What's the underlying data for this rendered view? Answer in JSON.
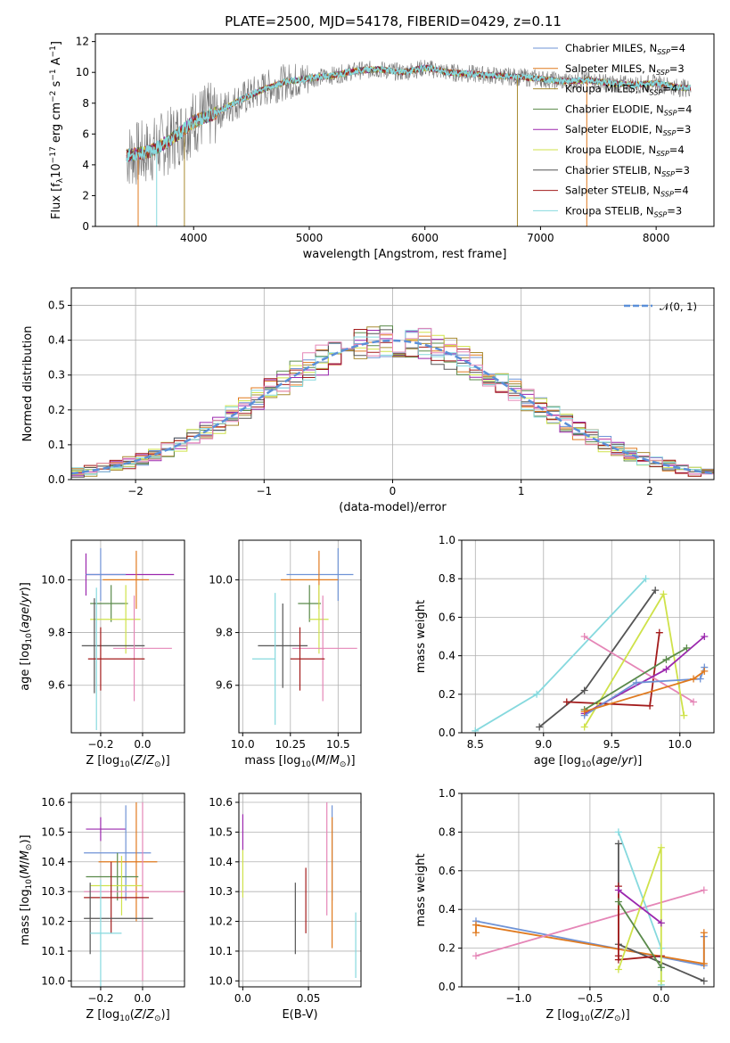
{
  "figure": {
    "title": "PLATE=2500, MJD=54178, FIBERID=0429, z=0.11"
  },
  "colors": {
    "chabrier_miles": "#6f93d6",
    "salpeter_miles": "#e07a1f",
    "kroupa_miles": "#a88b32",
    "chabrier_elodie": "#5a8a4a",
    "salpeter_elodie": "#9b27ae",
    "kroupa_elodie": "#cfe24a",
    "chabrier_stelib": "#555555",
    "salpeter_stelib": "#a31b1b",
    "kroupa_stelib": "#86d9de",
    "pink": "#e586b7",
    "normal": "#5b8fd8"
  },
  "chart_data": [
    {
      "id": "spectrum",
      "type": "line",
      "xlabel": "wavelength [Angstrom, rest frame]",
      "ylabel": "Flux [f_λ 10^-17 erg cm^-2 s^-1 A^-1]",
      "xlim": [
        3150,
        8500
      ],
      "ylim": [
        0,
        12.5
      ],
      "xticks": [
        4000,
        5000,
        6000,
        7000,
        8000
      ],
      "yticks": [
        0,
        2,
        4,
        6,
        8,
        10,
        12
      ],
      "legend": "top-right",
      "series_names": [
        "Chabrier MILES, N_SSP=4",
        "Salpeter MILES, N_SSP=3",
        "Kroupa MILES, N_SSP=4",
        "Chabrier ELODIE, N_SSP=4",
        "Salpeter ELODIE, N_SSP=3",
        "Kroupa ELODIE, N_SSP=4",
        "Chabrier STELIB, N_SSP=3",
        "Salpeter STELIB, N_SSP=4",
        "Kroupa STELIB, N_SSP=3"
      ],
      "x": [
        3420,
        3600,
        3800,
        4000,
        4200,
        4400,
        4600,
        4800,
        5000,
        5200,
        5400,
        5600,
        5800,
        6000,
        6200,
        6400,
        6600,
        6800,
        7000,
        7200,
        7400,
        7600,
        7800,
        8000,
        8200,
        8300
      ],
      "model_y": [
        4.6,
        4.8,
        5.6,
        6.8,
        7.4,
        8.2,
        8.9,
        9.4,
        9.6,
        9.8,
        10.1,
        10.2,
        10.0,
        10.3,
        10.0,
        9.9,
        9.8,
        9.7,
        9.6,
        9.4,
        9.5,
        9.3,
        9.2,
        9.3,
        9.0,
        9.0
      ]
    },
    {
      "id": "residual-histogram",
      "type": "histogram",
      "xlabel": "(data-model)/error",
      "ylabel": "Normed distribution",
      "xlim": [
        -2.5,
        2.5
      ],
      "ylim": [
        0,
        0.55
      ],
      "xticks": [
        -2,
        -1,
        0,
        1,
        2
      ],
      "yticks": [
        0.0,
        0.1,
        0.2,
        0.3,
        0.4,
        0.5
      ],
      "bin_width": 0.1,
      "bin_start": -2.5,
      "legend": "top-right",
      "legend_label": "𝒩(0, 1)",
      "series": [
        {
          "values": [
            0.02,
            0.02,
            0.03,
            0.03,
            0.04,
            0.04,
            0.05,
            0.05,
            0.06,
            0.07,
            0.08,
            0.1,
            0.11,
            0.12,
            0.13,
            0.15,
            0.16,
            0.19,
            0.21,
            0.23,
            0.25,
            0.28,
            0.3,
            0.31,
            0.33,
            0.35,
            0.36,
            0.37,
            0.38,
            0.4,
            0.39,
            0.39,
            0.4,
            0.41,
            0.42,
            0.4,
            0.39,
            0.38,
            0.37,
            0.36,
            0.35,
            0.33,
            0.31,
            0.3,
            0.28,
            0.26,
            0.24,
            0.22,
            0.2,
            0.18,
            0.16,
            0.14,
            0.13,
            0.11,
            0.1,
            0.09,
            0.07,
            0.06,
            0.05,
            0.05,
            0.04,
            0.04,
            0.03,
            0.03,
            0.02,
            0.02,
            0.02,
            0.02,
            0.01,
            0.01,
            0.01,
            0.01,
            0.01,
            0.01,
            0.01,
            0.01,
            0.01,
            0.01,
            0.01,
            0.01
          ]
        }
      ]
    },
    {
      "id": "age-vs-Z",
      "type": "errorbar",
      "xlabel": "Z [log10(Z/Z⊙)]",
      "ylabel": "age  [log10(age/yr)]",
      "xlim": [
        -0.34,
        0.2
      ],
      "ylim": [
        9.42,
        10.15
      ],
      "xticks": [
        -0.2,
        0.0
      ],
      "yticks": [
        9.6,
        9.8,
        10.0
      ],
      "points": [
        {
          "x": -0.27,
          "y": 10.02,
          "xerr": [
            0.0,
            0.42
          ],
          "yerr": 0.08,
          "c": "salpeter_elodie"
        },
        {
          "x": -0.2,
          "y": 10.02,
          "xerr": [
            0.07,
            0.12
          ],
          "yerr": 0.1,
          "c": "chabrier_miles"
        },
        {
          "x": -0.03,
          "y": 10.0,
          "xerr": [
            0.16,
            0.06
          ],
          "yerr": 0.11,
          "c": "salpeter_miles"
        },
        {
          "x": -0.15,
          "y": 9.91,
          "xerr": [
            0.1,
            0.08
          ],
          "yerr": 0.07,
          "c": "chabrier_elodie"
        },
        {
          "x": -0.08,
          "y": 9.85,
          "xerr": [
            0.17,
            0.07
          ],
          "yerr": 0.13,
          "c": "kroupa_elodie"
        },
        {
          "x": -0.23,
          "y": 9.75,
          "xerr": [
            0.06,
            0.24
          ],
          "yerr": 0.18,
          "c": "chabrier_stelib"
        },
        {
          "x": -0.04,
          "y": 9.74,
          "xerr": [
            0.1,
            0.18
          ],
          "yerr": 0.2,
          "c": "pink"
        },
        {
          "x": -0.2,
          "y": 9.7,
          "xerr": [
            0.06,
            0.21
          ],
          "yerr": 0.12,
          "c": "salpeter_stelib"
        },
        {
          "x": -0.22,
          "y": 9.7,
          "xerr": [
            0.0,
            0.0
          ],
          "yerr": 0.27,
          "c": "kroupa_stelib"
        }
      ]
    },
    {
      "id": "age-vs-mass",
      "type": "errorbar",
      "xlabel": "mass [log10(M/M⊙)]",
      "ylabel": "",
      "xlim": [
        9.98,
        10.62
      ],
      "ylim": [
        9.42,
        10.15
      ],
      "xticks": [
        10.0,
        10.25,
        10.5
      ],
      "yticks": [
        9.6,
        9.8,
        10.0
      ],
      "points": [
        {
          "x": 10.5,
          "y": 10.02,
          "xerr": [
            0.27,
            0.08
          ],
          "yerr": 0.1,
          "c": "chabrier_miles"
        },
        {
          "x": 10.4,
          "y": 10.0,
          "xerr": [
            0.2,
            0.1
          ],
          "yerr": 0.11,
          "c": "salpeter_miles"
        },
        {
          "x": 10.35,
          "y": 9.91,
          "xerr": [
            0.06,
            0.06
          ],
          "yerr": 0.07,
          "c": "chabrier_elodie"
        },
        {
          "x": 10.4,
          "y": 9.85,
          "xerr": [
            0.05,
            0.05
          ],
          "yerr": 0.13,
          "c": "kroupa_elodie"
        },
        {
          "x": 10.21,
          "y": 9.75,
          "xerr": [
            0.13,
            0.13
          ],
          "yerr": 0.16,
          "c": "chabrier_stelib"
        },
        {
          "x": 10.42,
          "y": 9.74,
          "xerr": [
            0.16,
            0.18
          ],
          "yerr": 0.2,
          "c": "pink"
        },
        {
          "x": 10.3,
          "y": 9.7,
          "xerr": [
            0.05,
            0.13
          ],
          "yerr": 0.12,
          "c": "salpeter_stelib"
        },
        {
          "x": 10.17,
          "y": 9.7,
          "xerr": [
            0.12,
            0.0
          ],
          "yerr": 0.25,
          "c": "kroupa_stelib"
        }
      ]
    },
    {
      "id": "massweight-vs-age",
      "type": "line",
      "xlabel": "age  [log10(age/yr)]",
      "ylabel": "mass weight",
      "xlim": [
        8.4,
        10.25
      ],
      "ylim": [
        0.0,
        1.0
      ],
      "xticks": [
        8.5,
        9.0,
        9.5,
        10.0
      ],
      "yticks": [
        0.0,
        0.2,
        0.4,
        0.6,
        0.8,
        1.0
      ],
      "series": [
        {
          "c": "kroupa_stelib",
          "x": [
            8.5,
            8.95,
            9.75
          ],
          "y": [
            0.01,
            0.2,
            0.8
          ]
        },
        {
          "c": "chabrier_stelib",
          "x": [
            8.97,
            9.3,
            9.82
          ],
          "y": [
            0.03,
            0.22,
            0.74
          ]
        },
        {
          "c": "salpeter_stelib",
          "x": [
            9.17,
            9.78,
            9.85
          ],
          "y": [
            0.16,
            0.14,
            0.52
          ]
        },
        {
          "c": "pink",
          "x": [
            9.3,
            10.1
          ],
          "y": [
            0.5,
            0.16
          ]
        },
        {
          "c": "kroupa_elodie",
          "x": [
            9.3,
            9.88,
            10.03
          ],
          "y": [
            0.03,
            0.72,
            0.09
          ]
        },
        {
          "c": "salpeter_elodie",
          "x": [
            9.3,
            9.9,
            10.18
          ],
          "y": [
            0.1,
            0.33,
            0.5
          ]
        },
        {
          "c": "chabrier_elodie",
          "x": [
            9.3,
            9.9,
            10.05
          ],
          "y": [
            0.12,
            0.38,
            0.44
          ]
        },
        {
          "c": "chabrier_miles",
          "x": [
            9.3,
            9.68,
            10.15,
            10.18
          ],
          "y": [
            0.09,
            0.26,
            0.28,
            0.34
          ]
        },
        {
          "c": "salpeter_miles",
          "x": [
            9.3,
            10.1,
            10.18
          ],
          "y": [
            0.11,
            0.28,
            0.32
          ]
        }
      ]
    },
    {
      "id": "mass-vs-Z",
      "type": "errorbar",
      "xlabel": "Z [log10(Z/Z⊙)]",
      "ylabel": "mass [log10(M/M⊙)]",
      "xlim": [
        -0.34,
        0.2
      ],
      "ylim": [
        9.98,
        10.63
      ],
      "xticks": [
        -0.2,
        0.0
      ],
      "yticks": [
        10.0,
        10.1,
        10.2,
        10.3,
        10.4,
        10.5,
        10.6
      ],
      "points": [
        {
          "x": -0.2,
          "y": 10.51,
          "xerr": [
            0.07,
            0.12
          ],
          "yerr": 0.04,
          "c": "salpeter_elodie"
        },
        {
          "x": -0.08,
          "y": 10.43,
          "xerr": [
            0.2,
            0.12
          ],
          "yerr": 0.16,
          "c": "chabrier_miles"
        },
        {
          "x": -0.03,
          "y": 10.4,
          "xerr": [
            0.18,
            0.1
          ],
          "yerr": 0.2,
          "c": "salpeter_miles"
        },
        {
          "x": -0.12,
          "y": 10.35,
          "xerr": [
            0.15,
            0.1
          ],
          "yerr": 0.08,
          "c": "chabrier_elodie"
        },
        {
          "x": -0.1,
          "y": 10.32,
          "xerr": [
            0.15,
            0.1
          ],
          "yerr": 0.1,
          "c": "kroupa_elodie"
        },
        {
          "x": 0.0,
          "y": 10.3,
          "xerr": [
            0.28,
            0.2
          ],
          "yerr": 0.3,
          "c": "pink"
        },
        {
          "x": -0.15,
          "y": 10.28,
          "xerr": [
            0.13,
            0.18
          ],
          "yerr": 0.12,
          "c": "salpeter_stelib"
        },
        {
          "x": -0.25,
          "y": 10.21,
          "xerr": [
            0.03,
            0.3
          ],
          "yerr": 0.12,
          "c": "chabrier_stelib"
        },
        {
          "x": -0.2,
          "y": 10.16,
          "xerr": [
            0.05,
            0.1
          ],
          "yerr": 0.18,
          "c": "kroupa_stelib"
        }
      ]
    },
    {
      "id": "mass-vs-EBV",
      "type": "errorbar",
      "xlabel": "E(B-V)",
      "ylabel": "",
      "xlim": [
        -0.003,
        0.09
      ],
      "ylim": [
        9.98,
        10.63
      ],
      "xticks": [
        0.0,
        0.05
      ],
      "yticks": [
        10.0,
        10.1,
        10.2,
        10.3,
        10.4,
        10.5,
        10.6
      ],
      "points": [
        {
          "x": 0.0,
          "y": 10.5,
          "xerr": [
            0,
            0
          ],
          "yerr": 0.06,
          "c": "salpeter_elodie"
        },
        {
          "x": 0.0,
          "y": 10.36,
          "xerr": [
            0,
            0
          ],
          "yerr": 0.08,
          "c": "kroupa_elodie"
        },
        {
          "x": 0.04,
          "y": 10.21,
          "xerr": [
            0,
            0
          ],
          "yerr": 0.12,
          "c": "chabrier_stelib"
        },
        {
          "x": 0.048,
          "y": 10.27,
          "xerr": [
            0,
            0
          ],
          "yerr": 0.11,
          "c": "salpeter_stelib"
        },
        {
          "x": 0.064,
          "y": 10.41,
          "xerr": [
            0,
            0
          ],
          "yerr": 0.19,
          "c": "pink"
        },
        {
          "x": 0.068,
          "y": 10.43,
          "xerr": [
            0,
            0
          ],
          "yerr": 0.16,
          "c": "chabrier_miles"
        },
        {
          "x": 0.068,
          "y": 10.33,
          "xerr": [
            0,
            0
          ],
          "yerr": 0.22,
          "c": "salpeter_miles"
        },
        {
          "x": 0.086,
          "y": 10.12,
          "xerr": [
            0,
            0
          ],
          "yerr": 0.11,
          "c": "kroupa_stelib"
        }
      ]
    },
    {
      "id": "massweight-vs-Z",
      "type": "line",
      "xlabel": "Z [log10(Z/Z⊙)]",
      "ylabel": "mass weight",
      "xlim": [
        -1.4,
        0.37
      ],
      "ylim": [
        0.0,
        1.0
      ],
      "xticks": [
        -1.0,
        -0.5,
        0.0
      ],
      "yticks": [
        0.0,
        0.2,
        0.4,
        0.6,
        0.8,
        1.0
      ],
      "series": [
        {
          "c": "chabrier_miles",
          "x": [
            -1.3,
            0.3,
            0.3
          ],
          "y": [
            0.34,
            0.11,
            0.26
          ]
        },
        {
          "c": "salpeter_miles",
          "x": [
            -1.3,
            -1.3,
            0.3,
            0.3
          ],
          "y": [
            0.28,
            0.32,
            0.12,
            0.28
          ]
        },
        {
          "c": "pink",
          "x": [
            -1.3,
            0.3
          ],
          "y": [
            0.16,
            0.5
          ]
        },
        {
          "c": "kroupa_stelib",
          "x": [
            -0.3,
            0.0,
            0.0
          ],
          "y": [
            0.8,
            0.2,
            0.01
          ]
        },
        {
          "c": "chabrier_stelib",
          "x": [
            -0.3,
            -0.3,
            0.3
          ],
          "y": [
            0.74,
            0.22,
            0.03
          ]
        },
        {
          "c": "salpeter_stelib",
          "x": [
            -0.3,
            -0.3,
            -0.3,
            0.0
          ],
          "y": [
            0.52,
            0.16,
            0.14,
            0.16
          ]
        },
        {
          "c": "kroupa_elodie",
          "x": [
            -0.3,
            0.0,
            0.0
          ],
          "y": [
            0.09,
            0.72,
            0.03
          ]
        },
        {
          "c": "salpeter_elodie",
          "x": [
            -0.3,
            0.0
          ],
          "y": [
            0.5,
            0.33
          ]
        },
        {
          "c": "chabrier_elodie",
          "x": [
            -0.3,
            0.0
          ],
          "y": [
            0.44,
            0.1
          ]
        }
      ]
    }
  ]
}
